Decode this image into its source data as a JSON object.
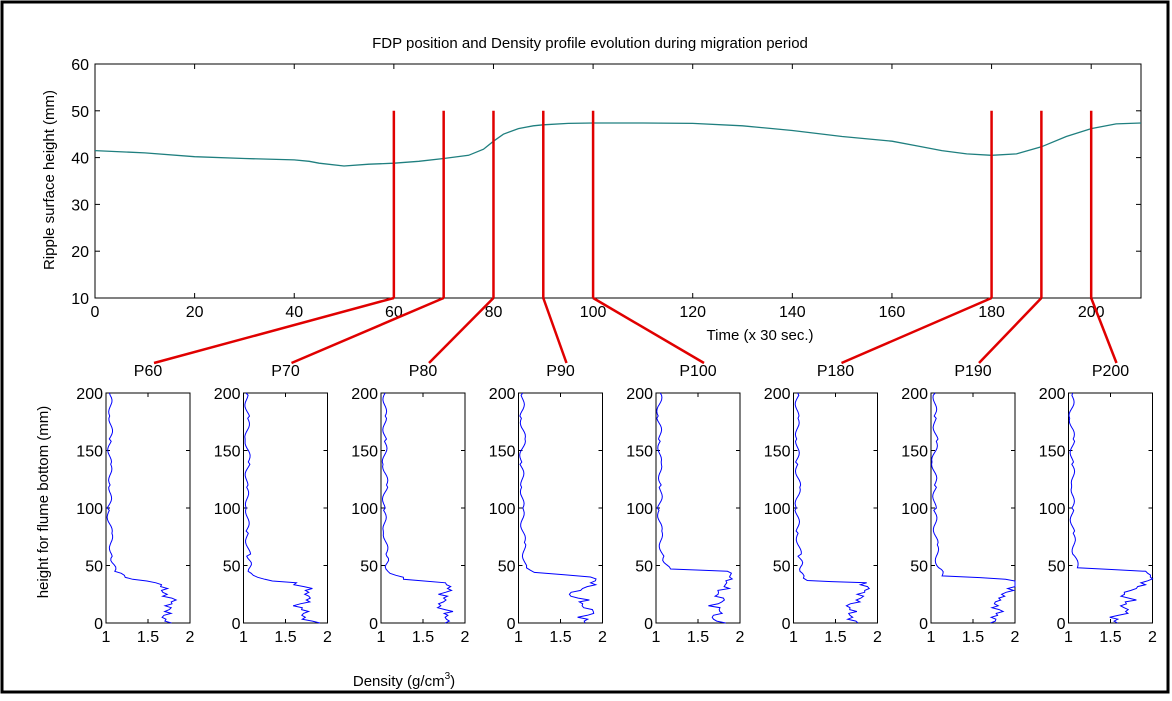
{
  "chart_data": [
    {
      "type": "line",
      "title": "FDP position and Density profile evolution during migration period",
      "xlabel": "Time (x 30 sec.)",
      "ylabel": "Ripple surface height (mm)",
      "xlim": [
        0,
        210
      ],
      "ylim": [
        10,
        60
      ],
      "xticks": [
        0,
        20,
        40,
        60,
        80,
        100,
        120,
        140,
        160,
        180,
        200
      ],
      "yticks": [
        10,
        20,
        30,
        40,
        50,
        60
      ],
      "grid": false,
      "colors": {
        "series": "#1f7f7f",
        "markers": "#e00000"
      },
      "series": [
        {
          "x": [
            0,
            10,
            20,
            30,
            40,
            43,
            45,
            50,
            55,
            60,
            65,
            70,
            75,
            78,
            80,
            82,
            85,
            88,
            90,
            95,
            100,
            110,
            120,
            130,
            140,
            150,
            160,
            165,
            170,
            175,
            180,
            185,
            190,
            195,
            200,
            205,
            210
          ],
          "y": [
            41.5,
            41,
            40.2,
            39.8,
            39.5,
            39.2,
            38.8,
            38.2,
            38.6,
            38.8,
            39.2,
            39.8,
            40.5,
            41.8,
            43.5,
            45,
            46.2,
            46.8,
            47,
            47.3,
            47.4,
            47.4,
            47.3,
            46.8,
            45.8,
            44.5,
            43.5,
            42.5,
            41.5,
            40.8,
            40.5,
            40.8,
            42.3,
            44.5,
            46.2,
            47.2,
            47.4
          ]
        }
      ],
      "markers": [
        {
          "label": "P60",
          "time": 60
        },
        {
          "label": "P70",
          "time": 70
        },
        {
          "label": "P80",
          "time": 80
        },
        {
          "label": "P90",
          "time": 90
        },
        {
          "label": "P100",
          "time": 100
        },
        {
          "label": "P180",
          "time": 180
        },
        {
          "label": "P190",
          "time": 190
        },
        {
          "label": "P200",
          "time": 200
        }
      ]
    },
    {
      "type": "line",
      "xlabel_prefix": "Density (g/cm",
      "xlabel_sup": "3",
      "xlabel_suffix": ")",
      "ylabel": "height for flume bottom (mm)",
      "xlim": [
        1,
        2
      ],
      "ylim": [
        0,
        200
      ],
      "xticks": [
        1,
        1.5,
        2
      ],
      "yticks": [
        0,
        50,
        100,
        150,
        200
      ],
      "color": "#0000ff",
      "panels": [
        {
          "title": "P60",
          "profile": [
            [
              0,
              1.78
            ],
            [
              5,
              1.72
            ],
            [
              10,
              1.75
            ],
            [
              15,
              1.7
            ],
            [
              20,
              1.78
            ],
            [
              25,
              1.68
            ],
            [
              30,
              1.74
            ],
            [
              35,
              1.65
            ],
            [
              38,
              1.35
            ],
            [
              45,
              1.1
            ],
            [
              60,
              1.07
            ],
            [
              80,
              1.05
            ],
            [
              100,
              1.03
            ],
            [
              120,
              1.06
            ],
            [
              140,
              1.04
            ],
            [
              160,
              1.05
            ],
            [
              180,
              1.06
            ],
            [
              200,
              1.04
            ]
          ]
        },
        {
          "title": "P70",
          "profile": [
            [
              0,
              1.85
            ],
            [
              5,
              1.7
            ],
            [
              10,
              1.8
            ],
            [
              15,
              1.65
            ],
            [
              20,
              1.78
            ],
            [
              25,
              1.7
            ],
            [
              30,
              1.76
            ],
            [
              35,
              1.6
            ],
            [
              38,
              1.2
            ],
            [
              45,
              1.08
            ],
            [
              60,
              1.06
            ],
            [
              80,
              1.04
            ],
            [
              100,
              1.05
            ],
            [
              120,
              1.03
            ],
            [
              140,
              1.06
            ],
            [
              160,
              1.04
            ],
            [
              180,
              1.05
            ],
            [
              200,
              1.03
            ]
          ]
        },
        {
          "title": "P80",
          "profile": [
            [
              0,
              1.78
            ],
            [
              5,
              1.72
            ],
            [
              10,
              1.8
            ],
            [
              15,
              1.7
            ],
            [
              20,
              1.82
            ],
            [
              25,
              1.74
            ],
            [
              30,
              1.8
            ],
            [
              35,
              1.72
            ],
            [
              38,
              1.25
            ],
            [
              45,
              1.08
            ],
            [
              60,
              1.06
            ],
            [
              80,
              1.05
            ],
            [
              100,
              1.03
            ],
            [
              120,
              1.06
            ],
            [
              140,
              1.04
            ],
            [
              160,
              1.05
            ],
            [
              180,
              1.04
            ],
            [
              200,
              1.05
            ]
          ]
        },
        {
          "title": "P90",
          "profile": [
            [
              0,
              1.85
            ],
            [
              5,
              1.75
            ],
            [
              10,
              1.88
            ],
            [
              15,
              1.7
            ],
            [
              20,
              1.8
            ],
            [
              25,
              1.62
            ],
            [
              30,
              1.82
            ],
            [
              35,
              1.9
            ],
            [
              40,
              1.85
            ],
            [
              44,
              1.2
            ],
            [
              50,
              1.08
            ],
            [
              70,
              1.06
            ],
            [
              100,
              1.04
            ],
            [
              120,
              1.05
            ],
            [
              140,
              1.03
            ],
            [
              160,
              1.06
            ],
            [
              180,
              1.04
            ],
            [
              200,
              1.05
            ]
          ]
        },
        {
          "title": "P100",
          "profile": [
            [
              0,
              1.8
            ],
            [
              5,
              1.7
            ],
            [
              10,
              1.82
            ],
            [
              15,
              1.65
            ],
            [
              20,
              1.78
            ],
            [
              25,
              1.68
            ],
            [
              30,
              1.85
            ],
            [
              35,
              1.88
            ],
            [
              40,
              1.9
            ],
            [
              45,
              1.86
            ],
            [
              47,
              1.15
            ],
            [
              60,
              1.07
            ],
            [
              80,
              1.05
            ],
            [
              100,
              1.04
            ],
            [
              120,
              1.06
            ],
            [
              140,
              1.04
            ],
            [
              160,
              1.05
            ],
            [
              180,
              1.03
            ],
            [
              200,
              1.05
            ]
          ]
        },
        {
          "title": "P180",
          "profile": [
            [
              0,
              1.72
            ],
            [
              5,
              1.65
            ],
            [
              10,
              1.75
            ],
            [
              15,
              1.68
            ],
            [
              20,
              1.8
            ],
            [
              25,
              1.76
            ],
            [
              30,
              1.85
            ],
            [
              35,
              1.82
            ],
            [
              37,
              1.2
            ],
            [
              45,
              1.1
            ],
            [
              60,
              1.07
            ],
            [
              80,
              1.05
            ],
            [
              100,
              1.04
            ],
            [
              120,
              1.06
            ],
            [
              140,
              1.04
            ],
            [
              160,
              1.05
            ],
            [
              180,
              1.04
            ],
            [
              200,
              1.05
            ]
          ]
        },
        {
          "title": "P190",
          "profile": [
            [
              0,
              1.75
            ],
            [
              5,
              1.7
            ],
            [
              10,
              1.8
            ],
            [
              15,
              1.76
            ],
            [
              20,
              1.85
            ],
            [
              25,
              1.9
            ],
            [
              30,
              1.95
            ],
            [
              35,
              2.0
            ],
            [
              38,
              1.9
            ],
            [
              41,
              1.15
            ],
            [
              50,
              1.08
            ],
            [
              70,
              1.06
            ],
            [
              100,
              1.04
            ],
            [
              120,
              1.05
            ],
            [
              140,
              1.03
            ],
            [
              160,
              1.06
            ],
            [
              180,
              1.04
            ],
            [
              200,
              1.05
            ]
          ]
        },
        {
          "title": "P200",
          "profile": [
            [
              0,
              1.62
            ],
            [
              5,
              1.55
            ],
            [
              10,
              1.7
            ],
            [
              15,
              1.58
            ],
            [
              20,
              1.75
            ],
            [
              25,
              1.65
            ],
            [
              30,
              1.85
            ],
            [
              35,
              1.92
            ],
            [
              40,
              1.98
            ],
            [
              45,
              1.9
            ],
            [
              48,
              1.1
            ],
            [
              60,
              1.07
            ],
            [
              80,
              1.05
            ],
            [
              100,
              1.04
            ],
            [
              120,
              1.06
            ],
            [
              140,
              1.04
            ],
            [
              160,
              1.05
            ],
            [
              180,
              1.03
            ],
            [
              200,
              1.05
            ]
          ]
        }
      ]
    }
  ]
}
